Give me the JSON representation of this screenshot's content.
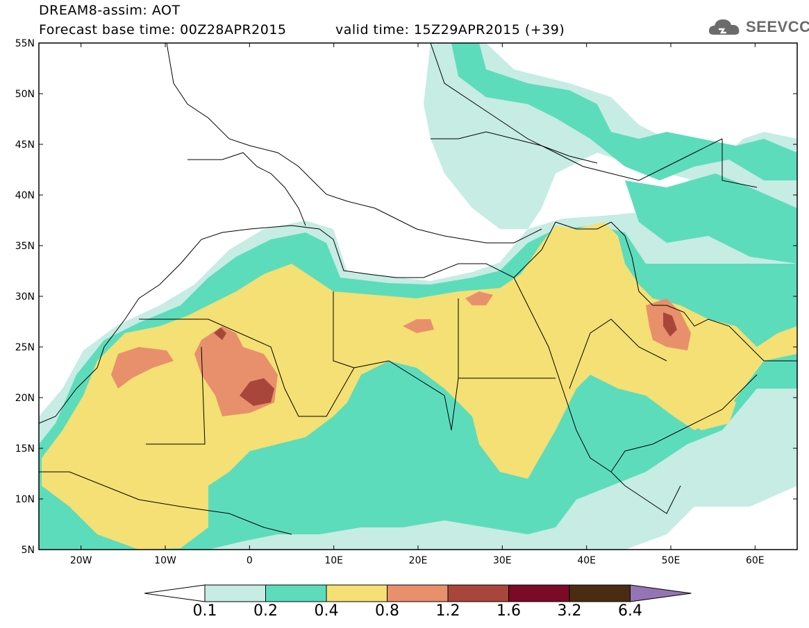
{
  "header": {
    "title": "DREAM8-assim: AOT",
    "base_time": "Forecast base time: 00Z28APR2015",
    "valid_time": "valid time: 15Z29APR2015 (+39)"
  },
  "logo": {
    "text": "SEEVCCC",
    "icon": "cloud-icon"
  },
  "map": {
    "lat_labels": [
      "55N",
      "50N",
      "45N",
      "40N",
      "35N",
      "30N",
      "25N",
      "20N",
      "15N",
      "10N",
      "5N"
    ],
    "lon_labels": [
      "20W",
      "10W",
      "0",
      "10E",
      "20E",
      "30E",
      "40E",
      "50E",
      "60E"
    ],
    "lat_range": [
      5,
      55
    ],
    "lon_range": [
      -25,
      65
    ]
  },
  "legend": {
    "levels": [
      "0.1",
      "0.2",
      "0.4",
      "0.8",
      "1.2",
      "1.6",
      "3.2",
      "6.4"
    ],
    "colors": [
      "#ffffff",
      "#c6ece4",
      "#5ddcbc",
      "#f4e074",
      "#e8906c",
      "#a8463c",
      "#7a0a26",
      "#4a2c12",
      "#9474b4"
    ]
  }
}
